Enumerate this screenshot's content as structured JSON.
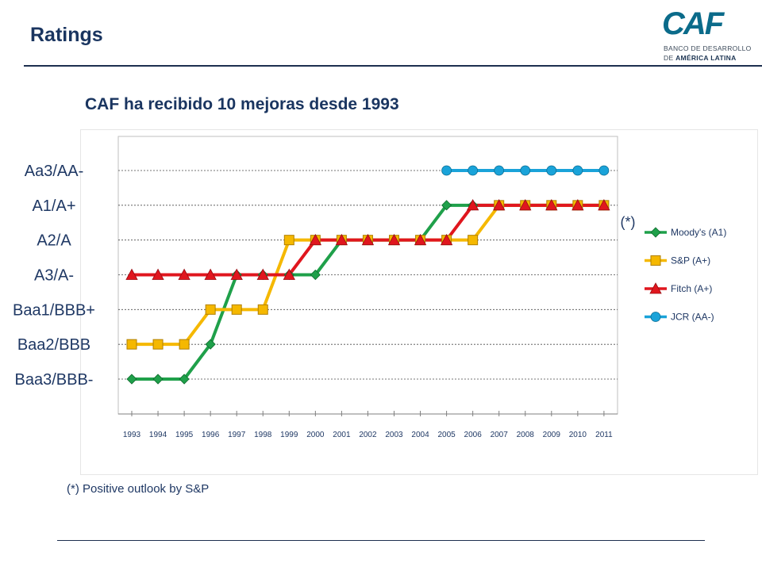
{
  "header": {
    "title": "Ratings",
    "logo_text": "CAF",
    "logo_line1": "BANCO DE DESARROLLO",
    "logo_line2_prefix": "DE ",
    "logo_line2_bold": "AMÉRICA LATINA"
  },
  "subtitle": "CAF ha recibido 10 mejoras desde 1993",
  "footnote": "(*) Positive outlook by S&P",
  "chart_data": {
    "type": "line",
    "title": "",
    "xlabel": "",
    "ylabel": "",
    "categories": [
      "1993",
      "1994",
      "1995",
      "1996",
      "1997",
      "1998",
      "1999",
      "2000",
      "2001",
      "2002",
      "2003",
      "2004",
      "2005",
      "2006",
      "2007",
      "2008",
      "2009",
      "2010",
      "2011"
    ],
    "y_categories": [
      "Baa3/BBB-",
      "Baa2/BBB",
      "Baa1/BBB+",
      "A3/A-",
      "A2/A",
      "A1/A+",
      "Aa3/AA-"
    ],
    "y_scale_note": "values are rating steps: 1 = Baa3/BBB- ... 7 = Aa3/AA-",
    "grid": true,
    "legend_position": "right",
    "annotation": "(*)",
    "series": [
      {
        "name": "Moody's (A1)",
        "color": "#1fa04a",
        "marker": "diamond",
        "values": [
          1,
          1,
          1,
          2,
          4,
          4,
          4,
          4,
          5,
          5,
          5,
          5,
          6,
          6,
          6,
          6,
          6,
          6,
          6
        ]
      },
      {
        "name": "S&P (A+)",
        "color": "#f5b800",
        "marker": "square",
        "values": [
          2,
          2,
          2,
          3,
          3,
          3,
          5,
          5,
          5,
          5,
          5,
          5,
          5,
          5,
          6,
          6,
          6,
          6,
          6
        ]
      },
      {
        "name": "Fitch (A+)",
        "color": "#e0161e",
        "marker": "triangle",
        "values": [
          4,
          4,
          4,
          4,
          4,
          4,
          4,
          5,
          5,
          5,
          5,
          5,
          5,
          6,
          6,
          6,
          6,
          6,
          6
        ]
      },
      {
        "name": "JCR (AA-)",
        "color": "#1aa3d9",
        "marker": "circle",
        "values": [
          null,
          null,
          null,
          null,
          null,
          null,
          null,
          null,
          null,
          null,
          null,
          null,
          7,
          7,
          7,
          7,
          7,
          7,
          7
        ]
      }
    ]
  }
}
